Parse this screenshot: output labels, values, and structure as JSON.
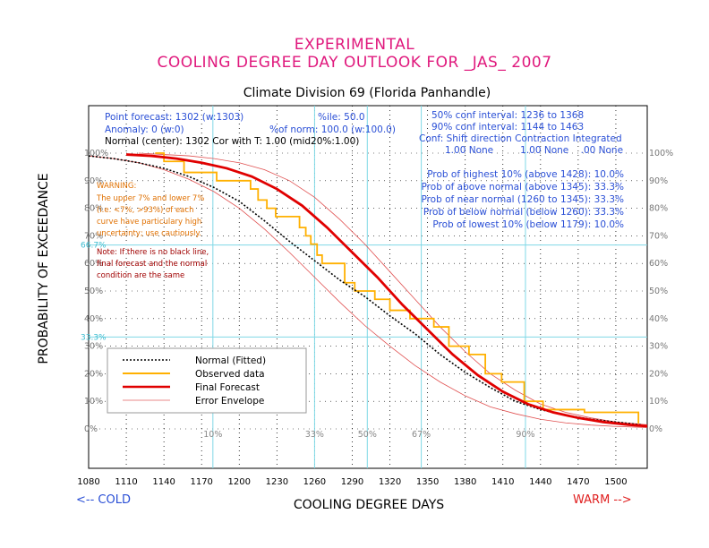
{
  "header": {
    "title_line1": "EXPERIMENTAL",
    "title_line2": "COOLING DEGREE DAY OUTLOOK FOR _JAS_ 2007",
    "subtitle": "Climate Division 69 (Florida Panhandle)"
  },
  "info": {
    "point_forecast": "Point forecast: 1302 (w:1303)",
    "percentile": "%ile: 50.0",
    "anomaly": "Anomaly: 0 (w:0)",
    "pct_normal": "%of norm:  100.0 (w:100.0)",
    "normal_center": "Normal (center): 1302 Cor with T: 1.00 (mid20%:1.00)",
    "conf50": "50% conf interval: 1236 to 1368",
    "conf90": "90% conf interval: 1144 to 1463",
    "conf_header": "Conf: Shift direction   Contraction   Integrated",
    "conf_values": "1.00 None         1.00 None    .00 None",
    "prob_highest": "Prob of highest 10% (above 1428): 10.0%",
    "prob_above": "Prob of above normal (above 1345): 33.3%",
    "prob_near": "Prob of near normal (1260 to 1345): 33.3%",
    "prob_below": "Prob of below normal (below 1260): 33.3%",
    "prob_lowest": "Prob of lowest 10% (below 1179): 10.0%"
  },
  "warning": {
    "lines": [
      "WARNING:",
      "The upper 7% and lower 7%",
      "(i.e. <7%, >93%) of each",
      "curve have particulary high",
      "uncertainty; use cautiously."
    ],
    "note_lines": [
      "Note: If there is no black line,",
      "final forecast and  the normal",
      "condition are the same"
    ]
  },
  "axis": {
    "xlabel": "COOLING DEGREE DAYS",
    "ylabel": "PROBABILITY OF EXCEEDANCE",
    "cold": "<-- COLD",
    "warm": "WARM -->"
  },
  "legend": {
    "normal": "Normal (Fitted)",
    "observed": "Observed data",
    "final": "Final Forecast",
    "envelope": "Error Envelope"
  },
  "colors": {
    "normal": "#000000",
    "observed": "#ffb000",
    "final": "#e00000",
    "envelope": "#e00000",
    "grid_cyan": "#7fd8e6",
    "title": "#e0197d",
    "info_blue": "#2a4fd6"
  },
  "chart_data": {
    "type": "line",
    "xlim": [
      1080,
      1525
    ],
    "ylim": [
      0,
      100
    ],
    "x_ticks": [
      1080,
      1110,
      1140,
      1170,
      1200,
      1230,
      1260,
      1290,
      1320,
      1350,
      1380,
      1410,
      1440,
      1470,
      1500
    ],
    "y_ticks": [
      0,
      10,
      20,
      30,
      40,
      50,
      60,
      70,
      80,
      90,
      100
    ],
    "y_tick_labels": [
      "0%",
      "10%",
      "20%",
      "30%",
      "40%",
      "50%",
      "60%",
      "70%",
      "80%",
      "90%",
      "100%"
    ],
    "horizontal_refs": [
      {
        "y": 66.7,
        "label": "66.7%"
      },
      {
        "y": 33.3,
        "label": "33.3%"
      }
    ],
    "quantile_lines": [
      {
        "x": 1179,
        "label": "10%"
      },
      {
        "x": 1260,
        "label": "33%"
      },
      {
        "x": 1302,
        "label": "50%"
      },
      {
        "x": 1345,
        "label": "67%"
      },
      {
        "x": 1428,
        "label": "90%"
      }
    ],
    "series": [
      {
        "name": "Normal (Fitted)",
        "x": [
          1080,
          1100,
          1120,
          1140,
          1160,
          1180,
          1200,
          1220,
          1240,
          1260,
          1280,
          1300,
          1320,
          1340,
          1360,
          1380,
          1400,
          1420,
          1440,
          1460,
          1480,
          1500,
          1520
        ],
        "y": [
          99,
          98,
          96.5,
          94.5,
          91.5,
          87.5,
          82.5,
          75.5,
          68,
          61,
          54,
          48,
          41,
          34.5,
          27,
          20.5,
          15,
          10,
          7,
          5,
          3.5,
          2.5,
          1.5
        ]
      },
      {
        "name": "Observed data",
        "steps": true,
        "x": [
          1133,
          1140,
          1156,
          1182,
          1196,
          1209,
          1215,
          1222,
          1229,
          1248,
          1253,
          1257,
          1262,
          1266,
          1284,
          1292,
          1308,
          1320,
          1336,
          1355,
          1367,
          1383,
          1396,
          1409,
          1427,
          1442,
          1475,
          1518
        ],
        "y": [
          100,
          97,
          93,
          90,
          90,
          87,
          83,
          80,
          77,
          73,
          70,
          67,
          63,
          60,
          53,
          50,
          47,
          43,
          40,
          37,
          30,
          27,
          20,
          17,
          10,
          7,
          6,
          2
        ]
      },
      {
        "name": "Final Forecast",
        "x": [
          1110,
          1130,
          1150,
          1170,
          1190,
          1210,
          1230,
          1250,
          1270,
          1290,
          1310,
          1330,
          1350,
          1370,
          1390,
          1410,
          1430,
          1450,
          1470,
          1490,
          1510,
          1525
        ],
        "y": [
          99.5,
          99,
          98,
          96.5,
          94.5,
          91.5,
          87,
          81,
          73,
          64,
          55,
          45,
          36,
          27,
          19.5,
          13.5,
          9,
          6,
          4,
          2.5,
          1.5,
          1
        ]
      },
      {
        "name": "Error Envelope Upper",
        "x": [
          1120,
          1140,
          1160,
          1180,
          1200,
          1220,
          1240,
          1260,
          1280,
          1300,
          1320,
          1340,
          1360,
          1380,
          1400,
          1420,
          1440,
          1460,
          1480,
          1500,
          1525
        ],
        "y": [
          100,
          99.5,
          99,
          98,
          96.5,
          94,
          90,
          84,
          76,
          67,
          57,
          47,
          37,
          28,
          20,
          14,
          9,
          6,
          4,
          2.5,
          1.5
        ]
      },
      {
        "name": "Error Envelope Lower",
        "x": [
          1080,
          1100,
          1120,
          1140,
          1160,
          1180,
          1200,
          1220,
          1240,
          1260,
          1280,
          1300,
          1320,
          1340,
          1360,
          1380,
          1400,
          1420,
          1440,
          1460,
          1480,
          1500,
          1525
        ],
        "y": [
          99,
          98,
          96.5,
          94,
          90.5,
          86,
          80,
          72.5,
          64,
          55,
          46,
          37.5,
          30,
          23,
          17,
          12,
          8,
          5.5,
          3.5,
          2.2,
          1.4,
          0.9,
          0.5
        ]
      }
    ]
  }
}
